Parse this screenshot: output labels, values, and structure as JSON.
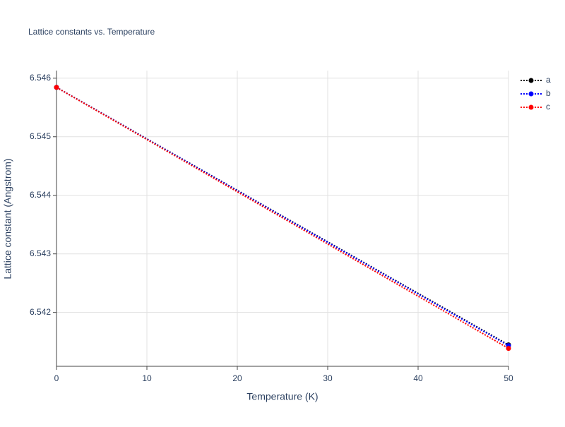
{
  "chart_data": {
    "type": "line",
    "title": "Lattice constants vs. Temperature",
    "x_label": "Temperature (K)",
    "y_label": "Lattice constant (Angstrom)",
    "x": [
      0,
      50
    ],
    "series": [
      {
        "name": "a",
        "color": "#000000",
        "values": [
          6.545843,
          6.541446
        ]
      },
      {
        "name": "b",
        "color": "#0000ff",
        "values": [
          6.545843,
          6.541434
        ]
      },
      {
        "name": "c",
        "color": "#ff0000",
        "values": [
          6.545843,
          6.541386
        ]
      }
    ],
    "xlim": [
      0,
      50
    ],
    "xticks": [
      0,
      10,
      20,
      30,
      40,
      50
    ],
    "ylim": [
      6.54108,
      6.54613
    ],
    "yticks": [
      6.542,
      6.543,
      6.544,
      6.545,
      6.546
    ],
    "grid": true,
    "legend": "top-right"
  }
}
